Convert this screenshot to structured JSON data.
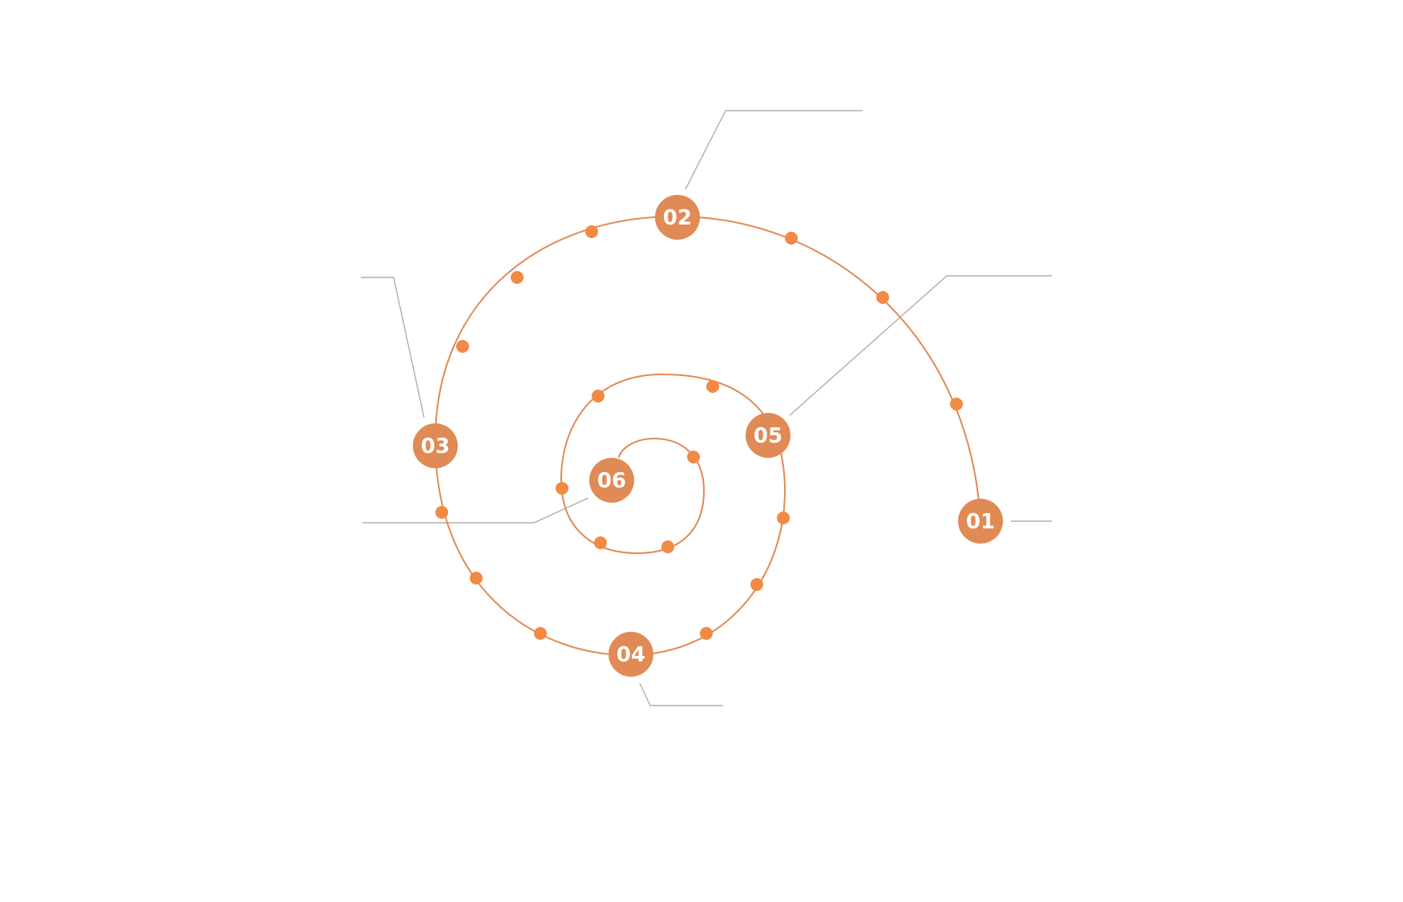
{
  "colors": {
    "background": "#ffffff",
    "spiral": "#e08a55",
    "dot": "#f08a45",
    "badge": "#e08a55",
    "badge_text": "#ffffff",
    "leader": "#b8aca3"
  },
  "diagram": {
    "type": "spiral-steps",
    "steps": [
      {
        "label": "01"
      },
      {
        "label": "02"
      },
      {
        "label": "03"
      },
      {
        "label": "04"
      },
      {
        "label": "05"
      },
      {
        "label": "06"
      }
    ]
  }
}
